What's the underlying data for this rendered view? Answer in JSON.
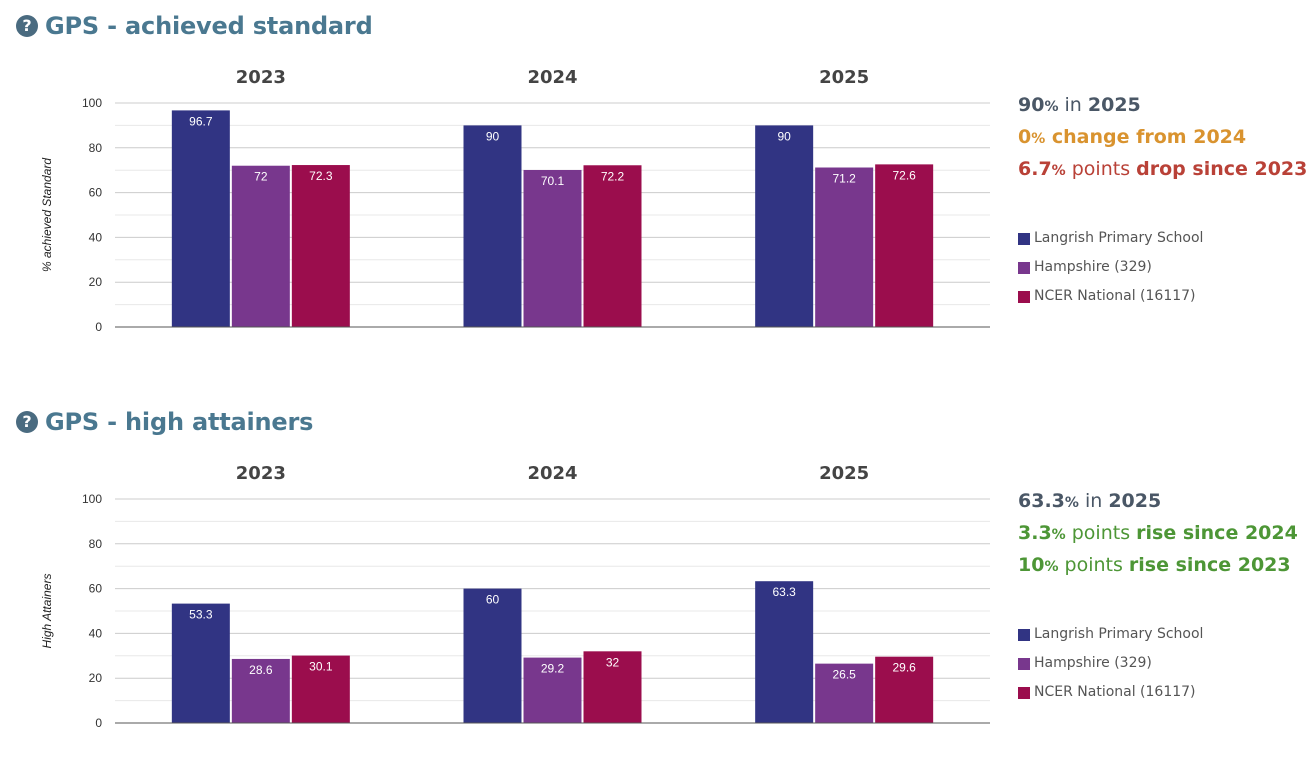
{
  "colors": {
    "school": "#313483",
    "hampshire": "#78378d",
    "national": "#9b0d4d",
    "neutral_text": "#4a5766",
    "amber": "#d9932f",
    "red": "#b94137",
    "green": "#4d9636",
    "title": "#4a7890"
  },
  "legend": [
    {
      "label": "Langrish Primary School",
      "color": "#313483"
    },
    {
      "label": "Hampshire (329)",
      "color": "#78378d"
    },
    {
      "label": "NCER National (16117)",
      "color": "#9b0d4d"
    }
  ],
  "sections": [
    {
      "title": "GPS - achieved standard",
      "help_icon": "question-circle-icon",
      "stats": [
        {
          "color": "#4a5766",
          "parts": [
            {
              "t": "90",
              "b": true
            },
            {
              "t": "%",
              "b": true,
              "s": true
            },
            {
              "t": " in "
            },
            {
              "t": "2025",
              "b": true
            }
          ]
        },
        {
          "color": "#d9932f",
          "parts": [
            {
              "t": "0",
              "b": true
            },
            {
              "t": "%",
              "b": true,
              "s": true
            },
            {
              "t": " change from 2024",
              "b": true
            }
          ]
        },
        {
          "color": "#b94137",
          "parts": [
            {
              "t": "6.7",
              "b": true
            },
            {
              "t": "%",
              "b": true,
              "s": true
            },
            {
              "t": " points "
            },
            {
              "t": "drop since 2023",
              "b": true
            }
          ]
        }
      ]
    },
    {
      "title": "GPS - high attainers",
      "help_icon": "question-circle-icon",
      "stats": [
        {
          "color": "#4a5766",
          "parts": [
            {
              "t": "63.3",
              "b": true
            },
            {
              "t": "%",
              "b": true,
              "s": true
            },
            {
              "t": " in "
            },
            {
              "t": "2025",
              "b": true
            }
          ]
        },
        {
          "color": "#4d9636",
          "parts": [
            {
              "t": "3.3",
              "b": true
            },
            {
              "t": "%",
              "b": true,
              "s": true
            },
            {
              "t": " points "
            },
            {
              "t": "rise since 2024",
              "b": true
            }
          ]
        },
        {
          "color": "#4d9636",
          "parts": [
            {
              "t": "10",
              "b": true
            },
            {
              "t": "%",
              "b": true,
              "s": true
            },
            {
              "t": " points "
            },
            {
              "t": "rise since 2023",
              "b": true
            }
          ]
        }
      ]
    }
  ],
  "chart_data": [
    {
      "type": "bar",
      "title": "GPS - achieved standard",
      "ylabel": "% achieved Standard",
      "xlabel": "",
      "ylim": [
        0,
        100
      ],
      "yticks": [
        0,
        20,
        40,
        60,
        80,
        100
      ],
      "grid": true,
      "legend": "right",
      "categories": [
        "2023",
        "2024",
        "2025"
      ],
      "series": [
        {
          "name": "Langrish Primary School",
          "values": [
            96.7,
            90,
            90
          ],
          "labels": [
            "96.7",
            "90",
            "90"
          ]
        },
        {
          "name": "Hampshire (329)",
          "values": [
            72,
            70.1,
            71.2
          ],
          "labels": [
            "72",
            "70.1",
            "71.2"
          ]
        },
        {
          "name": "NCER National (16117)",
          "values": [
            72.3,
            72.2,
            72.6
          ],
          "labels": [
            "72.3",
            "72.2",
            "72.6"
          ]
        }
      ]
    },
    {
      "type": "bar",
      "title": "GPS - high attainers",
      "ylabel": "High Attainers",
      "xlabel": "",
      "ylim": [
        0,
        100
      ],
      "yticks": [
        0,
        20,
        40,
        60,
        80,
        100
      ],
      "grid": true,
      "legend": "right",
      "categories": [
        "2023",
        "2024",
        "2025"
      ],
      "series": [
        {
          "name": "Langrish Primary School",
          "values": [
            53.3,
            60,
            63.3
          ],
          "labels": [
            "53.3",
            "60",
            "63.3"
          ]
        },
        {
          "name": "Hampshire (329)",
          "values": [
            28.6,
            29.2,
            26.5
          ],
          "labels": [
            "28.6",
            "29.2",
            "26.5"
          ]
        },
        {
          "name": "NCER National (16117)",
          "values": [
            30.1,
            32,
            29.6
          ],
          "labels": [
            "30.1",
            "32",
            "29.6"
          ]
        }
      ]
    }
  ]
}
